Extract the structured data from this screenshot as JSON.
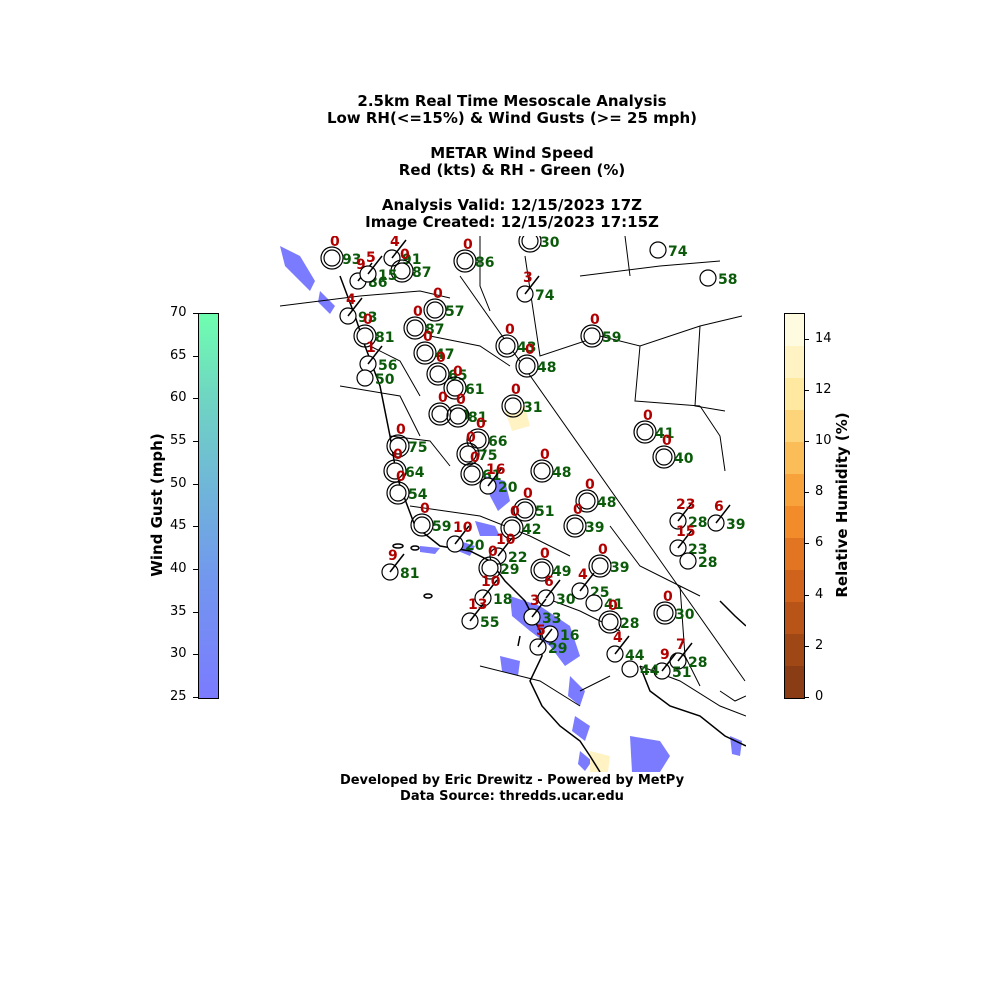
{
  "title": {
    "line1": "2.5km Real Time Mesoscale Analysis",
    "line2": "Low RH(<=15%) & Wind Gusts (>= 25 mph)",
    "line3": "METAR Wind Speed",
    "line4": "Red (kts) & RH - Green (%)",
    "line5": "Analysis Valid: 12/15/2023 17Z",
    "line6": "Image Created: 12/15/2023 17:15Z"
  },
  "footer": {
    "line1": "Developed by Eric Drewitz - Powered by MetPy",
    "line2": "Data Source: thredds.ucar.edu"
  },
  "colorbars": {
    "wind_gust": {
      "label": "Wind Gust (mph)",
      "ticks": [
        "70",
        "65",
        "60",
        "55",
        "50",
        "45",
        "40",
        "35",
        "30",
        "25"
      ],
      "color_top": "#6fffb0",
      "color_bottom": "#7b7bff"
    },
    "rh": {
      "label": "Relative Humidity (%)",
      "ticks": [
        "14",
        "12",
        "10",
        "8",
        "6",
        "4",
        "2",
        "0"
      ],
      "colors": [
        "#fffbe0",
        "#fff3c4",
        "#ffe8a0",
        "#fdd47a",
        "#fbbd58",
        "#f8a23c",
        "#f28c2a",
        "#e27522",
        "#cf631c",
        "#b85418",
        "#a04716",
        "#8a3c14"
      ]
    }
  },
  "stations": [
    {
      "ws": "0",
      "rh": "93"
    },
    {
      "ws": "4",
      "rh": "91"
    },
    {
      "ws": "0",
      "rh": "87"
    },
    {
      "ws": "9",
      "rh": "86"
    },
    {
      "ws": "5",
      "rh": "15"
    },
    {
      "ws": "0",
      "rh": "86"
    },
    {
      "ws": "3",
      "rh": "74"
    },
    {
      "ws": "0",
      "rh": "30"
    },
    {
      "ws": "",
      "rh": "74"
    },
    {
      "ws": "",
      "rh": "58"
    },
    {
      "ws": "4",
      "rh": "93"
    },
    {
      "ws": "0",
      "rh": "81"
    },
    {
      "ws": "0",
      "rh": "57"
    },
    {
      "ws": "0",
      "rh": "59"
    },
    {
      "ws": "0",
      "rh": "43"
    },
    {
      "ws": "0",
      "rh": "48"
    },
    {
      "ws": "0",
      "rh": "87"
    },
    {
      "ws": "0",
      "rh": "47"
    },
    {
      "ws": "1",
      "rh": "56"
    },
    {
      "ws": "",
      "rh": "50"
    },
    {
      "ws": "0",
      "rh": "65"
    },
    {
      "ws": "0",
      "rh": "61"
    },
    {
      "ws": "0",
      "rh": "31"
    },
    {
      "ws": "0",
      "rh": "70"
    },
    {
      "ws": "0",
      "rh": "81"
    },
    {
      "ws": "0",
      "rh": "41"
    },
    {
      "ws": "0",
      "rh": "40"
    },
    {
      "ws": "0",
      "rh": "75"
    },
    {
      "ws": "0",
      "rh": "66"
    },
    {
      "ws": "0",
      "rh": "75"
    },
    {
      "ws": "0",
      "rh": "64"
    },
    {
      "ws": "0",
      "rh": "61"
    },
    {
      "ws": "0",
      "rh": "48"
    },
    {
      "ws": "16",
      "rh": "20"
    },
    {
      "ws": "0",
      "rh": "54"
    },
    {
      "ws": "0",
      "rh": "51"
    },
    {
      "ws": "0",
      "rh": "48"
    },
    {
      "ws": "0",
      "rh": "59"
    },
    {
      "ws": "10",
      "rh": "20"
    },
    {
      "ws": "0",
      "rh": "42"
    },
    {
      "ws": "0",
      "rh": "39"
    },
    {
      "ws": "23",
      "rh": "28"
    },
    {
      "ws": "6",
      "rh": "39"
    },
    {
      "ws": "10",
      "rh": "22"
    },
    {
      "ws": "9",
      "rh": "81"
    },
    {
      "ws": "0",
      "rh": "29"
    },
    {
      "ws": "0",
      "rh": "49"
    },
    {
      "ws": "0",
      "rh": "39"
    },
    {
      "ws": "15",
      "rh": "23"
    },
    {
      "ws": "",
      "rh": "28"
    },
    {
      "ws": "10",
      "rh": "18"
    },
    {
      "ws": "6",
      "rh": "30"
    },
    {
      "ws": "4",
      "rh": "25"
    },
    {
      "ws": "",
      "rh": "41"
    },
    {
      "ws": "13",
      "rh": "55"
    },
    {
      "ws": "3",
      "rh": "33"
    },
    {
      "ws": "0",
      "rh": "28"
    },
    {
      "ws": "",
      "rh": "16"
    },
    {
      "ws": "0",
      "rh": "30"
    },
    {
      "ws": "5",
      "rh": "29"
    },
    {
      "ws": "4",
      "rh": "44"
    },
    {
      "ws": "7",
      "rh": "28"
    },
    {
      "ws": "9",
      "rh": "51"
    },
    {
      "ws": "",
      "rh": "44"
    }
  ]
}
